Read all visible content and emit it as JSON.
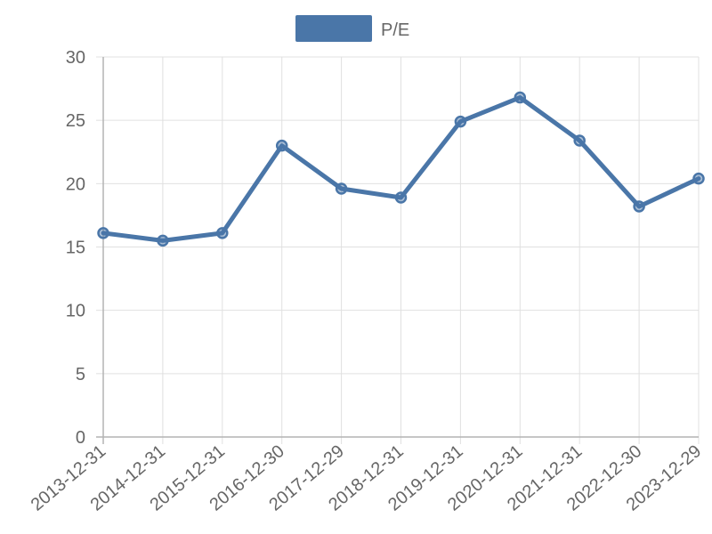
{
  "chart_data": {
    "type": "line",
    "title": "",
    "xlabel": "",
    "ylabel": "",
    "categories": [
      "2013-12-31",
      "2014-12-31",
      "2015-12-31",
      "2016-12-30",
      "2017-12-29",
      "2018-12-31",
      "2019-12-31",
      "2020-12-31",
      "2021-12-31",
      "2022-12-30",
      "2023-12-29"
    ],
    "series": [
      {
        "name": "P/E",
        "values": [
          16.1,
          15.5,
          16.1,
          23.0,
          19.6,
          18.9,
          24.9,
          26.8,
          23.4,
          18.2,
          20.4
        ]
      }
    ],
    "ylim": [
      0,
      30
    ],
    "yticks": [
      "0",
      "5",
      "10",
      "15",
      "20",
      "25",
      "30"
    ],
    "grid": true,
    "legend_position": "top",
    "colors": {
      "line": "#4a76a8",
      "grid": "#e0e0e0",
      "text": "#666666"
    }
  }
}
